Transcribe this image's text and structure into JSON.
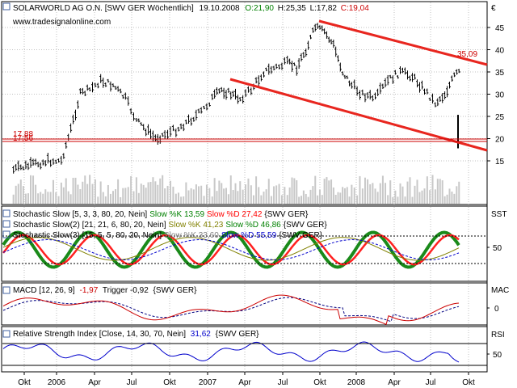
{
  "header": {
    "icon": "chart-window-icon",
    "title": "SOLARWORLD AG O.N. [SWV GER  Wöchentlich]",
    "date": "19.10.2008",
    "ohlc_open": "O:21,90",
    "ohlc_high": "H:25,35",
    "ohlc_low": "L:17,82",
    "ohlc_close": "C:19,04",
    "website": "www.tradesignalonline.com",
    "currency": "€",
    "colors": {
      "open": "#008000",
      "close": "#cc0000",
      "text": "#000000"
    }
  },
  "price_panel": {
    "ticks": [
      "45",
      "40",
      "35",
      "30",
      "25",
      "20",
      "15"
    ],
    "label_35": "35,09",
    "label_1788": "17,88",
    "label_1756": "17,56",
    "label_colors": {
      "upper": "#cc0000",
      "hline": "#cc0000"
    }
  },
  "stoch_panel": {
    "axis_label": "SST",
    "tick_50": "50",
    "legend": [
      {
        "prefix": "Stochastic Slow [5, 3, 3, 80, 20, Nein]",
        "k": "Slow %K 13,59",
        "d": "Slow %D 27,42",
        "suffix": "{SWV GER}",
        "kcolor": "#008000",
        "dcolor": "#ff0000"
      },
      {
        "prefix": "Stochastic Slow(2) [21, 21, 6, 80, 20, Nein]",
        "k": "Slow %K 41,23",
        "d": "Slow %D 46,86",
        "suffix": "{SWV GER}",
        "kcolor": "#808000",
        "dcolor": "#008000"
      },
      {
        "prefix": "Stochastic Slow(3) [15, 5, 5, 80, 20, Nein]",
        "k": "Slow %K 33,60",
        "d": "Slow %D 55,59",
        "suffix": "{SWV GER}",
        "kcolor": "#808080",
        "dcolor": "#0000cc"
      }
    ]
  },
  "macd_panel": {
    "axis_label": "MAC",
    "tick_0": "0",
    "legend_prefix": "MACD [12, 26, 9]",
    "legend_value": "-1,97",
    "legend_trigger": "Trigger  -0,92",
    "legend_suffix": "{SWV GER}",
    "value_color": "#cc0000"
  },
  "rsi_panel": {
    "axis_label": "RSI",
    "tick_50": "50",
    "legend_prefix": "Relative Strength Index [Close, 14, 30, 70, Nein]",
    "legend_value": "31,62",
    "legend_suffix": "{SWV GER}",
    "value_color": "#0000cc"
  },
  "x_axis": {
    "labels": [
      "Okt",
      "2006",
      "Apr",
      "Jul",
      "Okt",
      "2007",
      "Apr",
      "Jul",
      "Okt",
      "2008",
      "Apr",
      "Jul",
      "Okt"
    ]
  },
  "chart_data": {
    "type": "bar",
    "title": "SOLARWORLD AG O.N. [SWV GER  Wöchentlich]",
    "period": "weekly",
    "y_range": [
      10,
      48
    ],
    "y_ticks": [
      15,
      20,
      25,
      30,
      35,
      40,
      45
    ],
    "x_ticks": [
      "Okt",
      "2006",
      "Apr",
      "Jul",
      "Okt",
      "2007",
      "Apr",
      "Jul",
      "Okt",
      "2008",
      "Apr",
      "Jul",
      "Okt"
    ],
    "price_path": [
      [
        "Okt",
        13
      ],
      [
        "Okt",
        14
      ],
      [
        "Okt",
        15
      ],
      [
        "2006",
        15
      ],
      [
        "2006",
        22
      ],
      [
        "2006",
        30
      ],
      [
        "2006",
        31
      ],
      [
        "Apr",
        33
      ],
      [
        "Apr",
        32
      ],
      [
        "Apr",
        29
      ],
      [
        "Jul",
        24
      ],
      [
        "Jul",
        22
      ],
      [
        "Jul",
        20
      ],
      [
        "Jul",
        21
      ],
      [
        "Okt",
        22
      ],
      [
        "Okt",
        24
      ],
      [
        "Okt",
        26
      ],
      [
        "2007",
        29
      ],
      [
        "2007",
        31
      ],
      [
        "2007",
        30
      ],
      [
        "2007",
        29
      ],
      [
        "Apr",
        31
      ],
      [
        "Apr",
        35
      ],
      [
        "Apr",
        36
      ],
      [
        "Jul",
        37
      ],
      [
        "Jul",
        36
      ],
      [
        "Jul",
        40
      ],
      [
        "Jul",
        45
      ],
      [
        "Okt",
        44
      ],
      [
        "Okt",
        41
      ],
      [
        "Okt",
        35
      ],
      [
        "Okt",
        32
      ],
      [
        "2008",
        30
      ],
      [
        "2008",
        29
      ],
      [
        "2008",
        33
      ],
      [
        "Apr",
        35
      ],
      [
        "Apr",
        34
      ],
      [
        "Apr",
        31
      ],
      [
        "Jul",
        28
      ],
      [
        "Jul",
        30
      ],
      [
        "Jul",
        34
      ],
      [
        "Jul",
        36
      ],
      [
        "Okt",
        25
      ],
      [
        "Okt",
        19.04
      ]
    ],
    "last_bar": {
      "open": 21.9,
      "high": 25.35,
      "low": 17.82,
      "close": 19.04,
      "date": "19.10.2008"
    },
    "trend_channel": {
      "upper": [
        [
          "Okt",
          46
        ],
        [
          "Okt",
          33.5
        ]
      ],
      "lower": [
        [
          "Apr",
          29
        ],
        [
          "Okt",
          16.5
        ]
      ],
      "upper_label": 35.09
    },
    "horizontal_lines": [
      17.88,
      17.56
    ],
    "indicators": {
      "stochastic_1": {
        "k": 13.59,
        "d": 27.42
      },
      "stochastic_2": {
        "k": 41.23,
        "d": 46.86
      },
      "stochastic_3": {
        "k": 33.6,
        "d": 55.59
      },
      "macd": {
        "macd": -1.97,
        "trigger": -0.92
      },
      "rsi": 31.62
    },
    "grid": true,
    "legend_placement": "top-left"
  }
}
